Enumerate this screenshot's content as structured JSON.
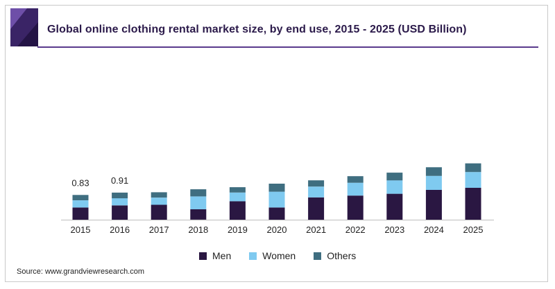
{
  "header": {
    "title": "Global online clothing rental market size, by end use, 2015 - 2025 (USD Billion)"
  },
  "colors": {
    "men": "#2a1742",
    "women": "#7fcaf0",
    "others": "#3f6e80",
    "brand": "#5a3a8c"
  },
  "chart_data": {
    "type": "bar",
    "stacked": true,
    "title": "Global online clothing rental market size, by end use, 2015 - 2025 (USD Billion)",
    "xlabel": "",
    "ylabel": "",
    "ylim": [
      0,
      3.2
    ],
    "categories": [
      "2015",
      "2016",
      "2017",
      "2018",
      "2019",
      "2020",
      "2021",
      "2022",
      "2023",
      "2024",
      "2025"
    ],
    "series": [
      {
        "name": "Men",
        "values": [
          0.41,
          0.48,
          0.5,
          0.35,
          0.62,
          0.41,
          0.75,
          0.81,
          0.87,
          1.0,
          1.07
        ]
      },
      {
        "name": "Women",
        "values": [
          0.24,
          0.24,
          0.24,
          0.43,
          0.29,
          0.53,
          0.36,
          0.43,
          0.45,
          0.47,
          0.53
        ]
      },
      {
        "name": "Others",
        "values": [
          0.18,
          0.19,
          0.18,
          0.24,
          0.18,
          0.27,
          0.21,
          0.22,
          0.26,
          0.29,
          0.29
        ]
      }
    ],
    "data_labels": [
      {
        "category": "2015",
        "text": "0.83"
      },
      {
        "category": "2016",
        "text": "0.91"
      }
    ],
    "legend": [
      "Men",
      "Women",
      "Others"
    ],
    "legend_position": "bottom",
    "grid": false
  },
  "footer": {
    "source": "Source: www.grandviewresearch.com"
  }
}
